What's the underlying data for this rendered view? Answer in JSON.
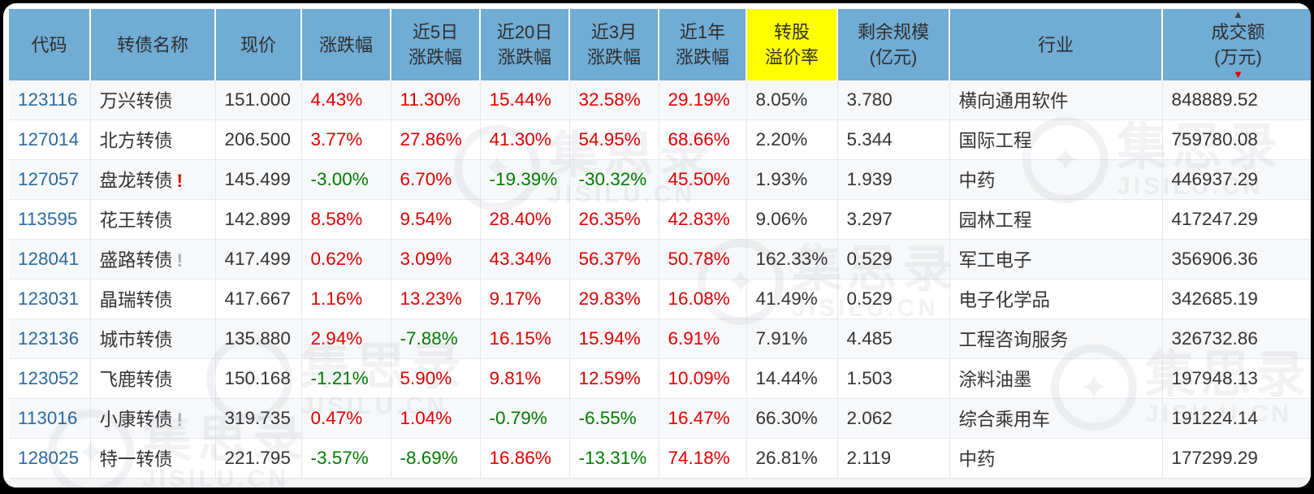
{
  "colors": {
    "header_bg": "#70ACD4",
    "highlight_bg": "#FFFF00",
    "up_red": "#E00000",
    "down_green": "#007B00",
    "code_blue": "#2B6A9E",
    "warn_gray": "#A9ADB2"
  },
  "icons": {
    "sort_asc": "▲",
    "sort_desc": "▼",
    "warning": "!",
    "watermark_logo": "✦"
  },
  "watermark": {
    "brand": "集思录",
    "domain": "JISILU.CN"
  },
  "table": {
    "columns": [
      {
        "id": "code",
        "label_lines": [
          "代码"
        ]
      },
      {
        "id": "name",
        "label_lines": [
          "转债名称"
        ]
      },
      {
        "id": "price",
        "label_lines": [
          "现价"
        ]
      },
      {
        "id": "change",
        "label_lines": [
          "涨跌幅"
        ]
      },
      {
        "id": "change-5d",
        "label_lines": [
          "近5日",
          "涨跌幅"
        ]
      },
      {
        "id": "change-20d",
        "label_lines": [
          "近20日",
          "涨跌幅"
        ]
      },
      {
        "id": "change-3m",
        "label_lines": [
          "近3月",
          "涨跌幅"
        ]
      },
      {
        "id": "change-1y",
        "label_lines": [
          "近1年",
          "涨跌幅"
        ]
      },
      {
        "id": "premium",
        "label_lines": [
          "转股",
          "溢价率"
        ],
        "highlight": true
      },
      {
        "id": "size",
        "label_lines": [
          "剩余规模",
          "(亿元)"
        ]
      },
      {
        "id": "industry",
        "label_lines": [
          "行业"
        ]
      },
      {
        "id": "turnover",
        "label_lines": [
          "成交额",
          "(万元)"
        ],
        "sort": "desc"
      }
    ],
    "rows": [
      {
        "code": "123116",
        "name": "万兴转债",
        "warning": null,
        "price": "151.000",
        "changes": [
          {
            "value": "4.43%",
            "trend": "up"
          },
          {
            "value": "11.30%",
            "trend": "up"
          },
          {
            "value": "15.44%",
            "trend": "up"
          },
          {
            "value": "32.58%",
            "trend": "up"
          },
          {
            "value": "29.19%",
            "trend": "up"
          }
        ],
        "premium": "8.05%",
        "size": "3.780",
        "industry": "横向通用软件",
        "turnover": "848889.52"
      },
      {
        "code": "127014",
        "name": "北方转债",
        "warning": null,
        "price": "206.500",
        "changes": [
          {
            "value": "3.77%",
            "trend": "up"
          },
          {
            "value": "27.86%",
            "trend": "up"
          },
          {
            "value": "41.30%",
            "trend": "up"
          },
          {
            "value": "54.95%",
            "trend": "up"
          },
          {
            "value": "68.66%",
            "trend": "up"
          }
        ],
        "premium": "2.20%",
        "size": "5.344",
        "industry": "国际工程",
        "turnover": "759780.08"
      },
      {
        "code": "127057",
        "name": "盘龙转债",
        "warning": "red",
        "price": "145.499",
        "changes": [
          {
            "value": "-3.00%",
            "trend": "down"
          },
          {
            "value": "6.70%",
            "trend": "up"
          },
          {
            "value": "-19.39%",
            "trend": "down"
          },
          {
            "value": "-30.32%",
            "trend": "down"
          },
          {
            "value": "45.50%",
            "trend": "up"
          }
        ],
        "premium": "1.93%",
        "size": "1.939",
        "industry": "中药",
        "turnover": "446937.29"
      },
      {
        "code": "113595",
        "name": "花王转债",
        "warning": null,
        "price": "142.899",
        "changes": [
          {
            "value": "8.58%",
            "trend": "up"
          },
          {
            "value": "9.54%",
            "trend": "up"
          },
          {
            "value": "28.40%",
            "trend": "up"
          },
          {
            "value": "26.35%",
            "trend": "up"
          },
          {
            "value": "42.83%",
            "trend": "up"
          }
        ],
        "premium": "9.06%",
        "size": "3.297",
        "industry": "园林工程",
        "turnover": "417247.29"
      },
      {
        "code": "128041",
        "name": "盛路转债",
        "warning": "gray",
        "price": "417.499",
        "changes": [
          {
            "value": "0.62%",
            "trend": "up"
          },
          {
            "value": "3.09%",
            "trend": "up"
          },
          {
            "value": "43.34%",
            "trend": "up"
          },
          {
            "value": "56.37%",
            "trend": "up"
          },
          {
            "value": "50.78%",
            "trend": "up"
          }
        ],
        "premium": "162.33%",
        "size": "0.529",
        "industry": "军工电子",
        "turnover": "356906.36"
      },
      {
        "code": "123031",
        "name": "晶瑞转债",
        "warning": null,
        "price": "417.667",
        "changes": [
          {
            "value": "1.16%",
            "trend": "up"
          },
          {
            "value": "13.23%",
            "trend": "up"
          },
          {
            "value": "9.17%",
            "trend": "up"
          },
          {
            "value": "29.83%",
            "trend": "up"
          },
          {
            "value": "16.08%",
            "trend": "up"
          }
        ],
        "premium": "41.49%",
        "size": "0.529",
        "industry": "电子化学品",
        "turnover": "342685.19"
      },
      {
        "code": "123136",
        "name": "城市转债",
        "warning": null,
        "price": "135.880",
        "changes": [
          {
            "value": "2.94%",
            "trend": "up"
          },
          {
            "value": "-7.88%",
            "trend": "down"
          },
          {
            "value": "16.15%",
            "trend": "up"
          },
          {
            "value": "15.94%",
            "trend": "up"
          },
          {
            "value": "6.91%",
            "trend": "up"
          }
        ],
        "premium": "7.91%",
        "size": "4.485",
        "industry": "工程咨询服务",
        "turnover": "326732.86"
      },
      {
        "code": "123052",
        "name": "飞鹿转债",
        "warning": null,
        "price": "150.168",
        "changes": [
          {
            "value": "-1.21%",
            "trend": "down"
          },
          {
            "value": "5.90%",
            "trend": "up"
          },
          {
            "value": "9.81%",
            "trend": "up"
          },
          {
            "value": "12.59%",
            "trend": "up"
          },
          {
            "value": "10.09%",
            "trend": "up"
          }
        ],
        "premium": "14.44%",
        "size": "1.503",
        "industry": "涂料油墨",
        "turnover": "197948.13"
      },
      {
        "code": "113016",
        "name": "小康转债",
        "warning": "gray",
        "price": "319.735",
        "changes": [
          {
            "value": "0.47%",
            "trend": "up"
          },
          {
            "value": "1.04%",
            "trend": "up"
          },
          {
            "value": "-0.79%",
            "trend": "down"
          },
          {
            "value": "-6.55%",
            "trend": "down"
          },
          {
            "value": "16.47%",
            "trend": "up"
          }
        ],
        "premium": "66.30%",
        "size": "2.062",
        "industry": "综合乘用车",
        "turnover": "191224.14"
      },
      {
        "code": "128025",
        "name": "特一转债",
        "warning": null,
        "price": "221.795",
        "changes": [
          {
            "value": "-3.57%",
            "trend": "down"
          },
          {
            "value": "-8.69%",
            "trend": "down"
          },
          {
            "value": "16.86%",
            "trend": "up"
          },
          {
            "value": "-13.31%",
            "trend": "down"
          },
          {
            "value": "74.18%",
            "trend": "up"
          }
        ],
        "premium": "26.81%",
        "size": "2.119",
        "industry": "中药",
        "turnover": "177299.29"
      }
    ]
  }
}
